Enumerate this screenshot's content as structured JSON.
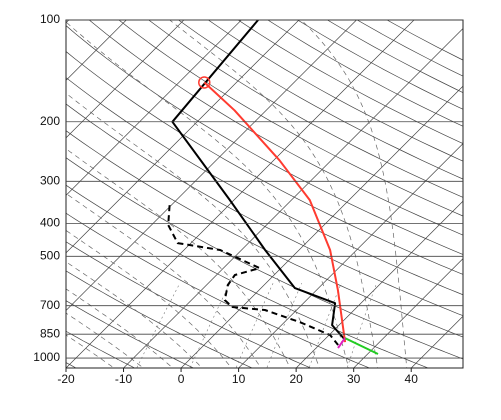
{
  "chart_data": {
    "type": "skew-t",
    "xlim": [
      -20,
      49
    ],
    "xticks": [
      -20,
      -10,
      0,
      10,
      20,
      30,
      40
    ],
    "ylim": [
      1070,
      100
    ],
    "yticks": [
      100,
      200,
      300,
      400,
      500,
      700,
      850,
      1000
    ],
    "y_scale": "log",
    "grid": true,
    "series": [
      {
        "color": "#000000",
        "dash": false,
        "x": [
          -47.1,
          -44.3,
          -20.7,
          -5.9,
          5.9,
          15.5,
          18.8,
          23.7
        ],
        "values": [
          100,
          200,
          341,
          479,
          621,
          688,
          799,
          885
        ]
      },
      {
        "color": "#000000",
        "dash": true,
        "x": [
          -30.3,
          -27.1,
          -22.3,
          -13.7,
          -3.7,
          -6.8,
          -6.3,
          -4.2,
          -1.7,
          4.5,
          12.7,
          20.2,
          23.3
        ],
        "values": [
          353,
          404,
          457,
          479,
          542,
          568,
          608,
          674,
          706,
          721,
          783,
          855,
          915
        ]
      },
      {
        "color": "#ff3b30",
        "dash": false,
        "x": [
          -45.6,
          -35.5,
          -19.0,
          -6.8,
          5.4,
          13.7,
          21.6,
          24.0
        ],
        "values": [
          153,
          185,
          260,
          341,
          479,
          629,
          826,
          897
        ]
      },
      {
        "color": "#22cc22",
        "dash": false,
        "x": [
          23.3,
          31.8
        ],
        "values": [
          873,
          973
        ]
      },
      {
        "color": "#e020c0",
        "dash": false,
        "x": [
          23.3,
          23.8
        ],
        "values": [
          873,
          934
        ]
      },
      {
        "color": "#ff3b30",
        "marker": "circle",
        "x": [
          -45.6
        ],
        "values": [
          153
        ]
      }
    ]
  }
}
